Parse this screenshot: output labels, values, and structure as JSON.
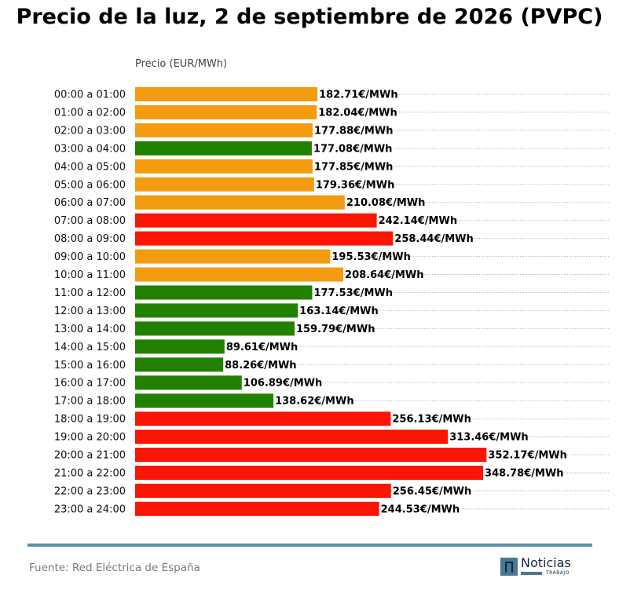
{
  "chart_data": {
    "type": "bar",
    "orientation": "horizontal",
    "title": "Precio de la luz, 2 de septiembre de 2026 (PVPC)",
    "ylabel": "Precio (EUR/MWh)",
    "value_suffix": "€/MWh",
    "categories": [
      "00:00 a 01:00",
      "01:00 a 02:00",
      "02:00 a 03:00",
      "03:00 a 04:00",
      "04:00 a 05:00",
      "05:00 a 06:00",
      "06:00 a 07:00",
      "07:00 a 08:00",
      "08:00 a 09:00",
      "09:00 a 10:00",
      "10:00 a 11:00",
      "11:00 a 12:00",
      "12:00 a 13:00",
      "13:00 a 14:00",
      "14:00 a 15:00",
      "15:00 a 16:00",
      "16:00 a 17:00",
      "17:00 a 18:00",
      "18:00 a 19:00",
      "19:00 a 20:00",
      "20:00 a 21:00",
      "21:00 a 22:00",
      "22:00 a 23:00",
      "23:00 a 24:00"
    ],
    "values": [
      182.71,
      182.04,
      177.88,
      177.08,
      177.85,
      179.36,
      210.08,
      242.14,
      258.44,
      195.53,
      208.64,
      177.53,
      163.14,
      159.79,
      89.61,
      88.26,
      106.89,
      138.62,
      256.13,
      313.46,
      352.17,
      348.78,
      256.45,
      244.53
    ],
    "value_labels": [
      "182.71€/MWh",
      "182.04€/MWh",
      "177.88€/MWh",
      "177.08€/MWh",
      "177.85€/MWh",
      "179.36€/MWh",
      "210.08€/MWh",
      "242.14€/MWh",
      "258.44€/MWh",
      "195.53€/MWh",
      "208.64€/MWh",
      "177.53€/MWh",
      "163.14€/MWh",
      "159.79€/MWh",
      "89.61€/MWh",
      "88.26€/MWh",
      "106.89€/MWh",
      "138.62€/MWh",
      "256.13€/MWh",
      "313.46€/MWh",
      "352.17€/MWh",
      "348.78€/MWh",
      "256.45€/MWh",
      "244.53€/MWh"
    ],
    "bar_colors": [
      "orange",
      "orange",
      "orange",
      "green",
      "orange",
      "orange",
      "orange",
      "red",
      "red",
      "orange",
      "orange",
      "green",
      "green",
      "green",
      "green",
      "green",
      "green",
      "green",
      "red",
      "red",
      "red",
      "red",
      "red",
      "red"
    ],
    "palette": {
      "green": "#228000",
      "orange": "#f39c12",
      "red": "#fb1505"
    },
    "xlim": [
      0,
      360
    ],
    "grid": "horizontal dotted",
    "legend": "none"
  },
  "footer": {
    "source": "Fuente: Red Eléctrica de España",
    "logo_text": "Noticias",
    "logo_subtext": "TRABAJO"
  }
}
